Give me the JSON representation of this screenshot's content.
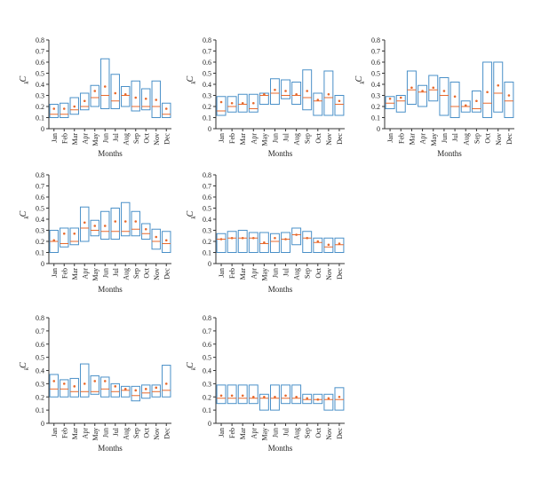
{
  "colors": {
    "box": "#4a90c8",
    "median": "#e8692c",
    "mean": "#e8692c",
    "axis": "#333333"
  },
  "chart_data": [
    {
      "type": "boxplot",
      "ylabel": "C",
      "ylabel_sub": "k",
      "xlabel": "Months",
      "ylim": [
        0,
        0.8
      ],
      "yticks": [
        "0",
        "0.1",
        "0.2",
        "0.3",
        "0.4",
        "0.5",
        "0.6",
        "0.7",
        "0.8"
      ],
      "categories": [
        "Jan",
        "Feb",
        "Mar",
        "Apr",
        "May",
        "Jun",
        "Jul",
        "Aug",
        "Sep",
        "Oct",
        "Nov",
        "Dec"
      ],
      "boxes": [
        {
          "low": 0.1,
          "high": 0.22,
          "median": 0.13,
          "mean": 0.18
        },
        {
          "low": 0.1,
          "high": 0.23,
          "median": 0.13,
          "mean": 0.18
        },
        {
          "low": 0.13,
          "high": 0.28,
          "median": 0.17,
          "mean": 0.2
        },
        {
          "low": 0.17,
          "high": 0.32,
          "median": 0.2,
          "mean": 0.25
        },
        {
          "low": 0.2,
          "high": 0.39,
          "median": 0.28,
          "mean": 0.34
        },
        {
          "low": 0.18,
          "high": 0.63,
          "median": 0.3,
          "mean": 0.38
        },
        {
          "low": 0.18,
          "high": 0.49,
          "median": 0.25,
          "mean": 0.32
        },
        {
          "low": 0.2,
          "high": 0.38,
          "median": 0.3,
          "mean": 0.31
        },
        {
          "low": 0.16,
          "high": 0.43,
          "median": 0.2,
          "mean": 0.28
        },
        {
          "low": 0.17,
          "high": 0.36,
          "median": 0.2,
          "mean": 0.27
        },
        {
          "low": 0.1,
          "high": 0.43,
          "median": 0.2,
          "mean": 0.26
        },
        {
          "low": 0.1,
          "high": 0.23,
          "median": 0.13,
          "mean": 0.18
        }
      ]
    },
    {
      "type": "boxplot",
      "ylabel": "C",
      "ylabel_sub": "k",
      "xlabel": "Months",
      "ylim": [
        0,
        0.8
      ],
      "yticks": [
        "0",
        "0.1",
        "0.2",
        "0.3",
        "0.4",
        "0.5",
        "0.6",
        "0.7",
        "0.8"
      ],
      "categories": [
        "Jan",
        "Feb",
        "Mar",
        "Apr",
        "May",
        "Jun",
        "Jul",
        "Aug",
        "Sep",
        "Oct",
        "Nov",
        "Dec"
      ],
      "boxes": [
        {
          "low": 0.12,
          "high": 0.29,
          "median": 0.16,
          "mean": 0.24
        },
        {
          "low": 0.15,
          "high": 0.29,
          "median": 0.2,
          "mean": 0.23
        },
        {
          "low": 0.15,
          "high": 0.31,
          "median": 0.22,
          "mean": 0.23
        },
        {
          "low": 0.15,
          "high": 0.31,
          "median": 0.18,
          "mean": 0.23
        },
        {
          "low": 0.22,
          "high": 0.32,
          "median": 0.3,
          "mean": 0.31
        },
        {
          "low": 0.22,
          "high": 0.45,
          "median": 0.32,
          "mean": 0.35
        },
        {
          "low": 0.27,
          "high": 0.44,
          "median": 0.3,
          "mean": 0.34
        },
        {
          "low": 0.22,
          "high": 0.42,
          "median": 0.3,
          "mean": 0.31
        },
        {
          "low": 0.17,
          "high": 0.53,
          "median": 0.28,
          "mean": 0.34
        },
        {
          "low": 0.12,
          "high": 0.32,
          "median": 0.25,
          "mean": 0.26
        },
        {
          "low": 0.12,
          "high": 0.52,
          "median": 0.28,
          "mean": 0.31
        },
        {
          "low": 0.12,
          "high": 0.3,
          "median": 0.22,
          "mean": 0.25
        }
      ]
    },
    {
      "type": "boxplot",
      "ylabel": "C",
      "ylabel_sub": "k",
      "xlabel": "Months",
      "ylim": [
        0,
        0.8
      ],
      "yticks": [
        "0",
        "0.1",
        "0.2",
        "0.3",
        "0.4",
        "0.5",
        "0.6",
        "0.7",
        "0.8"
      ],
      "categories": [
        "Jan",
        "Feb",
        "Mar",
        "Apr",
        "May",
        "Jun",
        "Jul",
        "Aug",
        "Sep",
        "Oct",
        "Nov",
        "Dec"
      ],
      "boxes": [
        {
          "low": 0.18,
          "high": 0.29,
          "median": 0.23,
          "mean": 0.27
        },
        {
          "low": 0.15,
          "high": 0.3,
          "median": 0.25,
          "mean": 0.28
        },
        {
          "low": 0.22,
          "high": 0.52,
          "median": 0.35,
          "mean": 0.37
        },
        {
          "low": 0.2,
          "high": 0.39,
          "median": 0.33,
          "mean": 0.34
        },
        {
          "low": 0.25,
          "high": 0.48,
          "median": 0.35,
          "mean": 0.37
        },
        {
          "low": 0.12,
          "high": 0.46,
          "median": 0.3,
          "mean": 0.34
        },
        {
          "low": 0.1,
          "high": 0.42,
          "median": 0.2,
          "mean": 0.29
        },
        {
          "low": 0.15,
          "high": 0.25,
          "median": 0.2,
          "mean": 0.21
        },
        {
          "low": 0.15,
          "high": 0.34,
          "median": 0.18,
          "mean": 0.25
        },
        {
          "low": 0.1,
          "high": 0.6,
          "median": 0.23,
          "mean": 0.33
        },
        {
          "low": 0.15,
          "high": 0.6,
          "median": 0.32,
          "mean": 0.39
        },
        {
          "low": 0.1,
          "high": 0.42,
          "median": 0.25,
          "mean": 0.3
        }
      ]
    },
    {
      "type": "boxplot",
      "ylabel": "C",
      "ylabel_sub": "k",
      "xlabel": "Months",
      "ylim": [
        0,
        0.8
      ],
      "yticks": [
        "0",
        "0.1",
        "0.2",
        "0.3",
        "0.4",
        "0.5",
        "0.6",
        "0.7",
        "0.8"
      ],
      "categories": [
        "Jan",
        "Feb",
        "Mar",
        "Apr",
        "May",
        "Jun",
        "Jul",
        "Aug",
        "Sep",
        "Oct",
        "Nov",
        "Dec"
      ],
      "boxes": [
        {
          "low": 0.1,
          "high": 0.3,
          "median": 0.2,
          "mean": 0.21
        },
        {
          "low": 0.15,
          "high": 0.32,
          "median": 0.18,
          "mean": 0.27
        },
        {
          "low": 0.17,
          "high": 0.32,
          "median": 0.2,
          "mean": 0.27
        },
        {
          "low": 0.2,
          "high": 0.51,
          "median": 0.32,
          "mean": 0.37
        },
        {
          "low": 0.25,
          "high": 0.39,
          "median": 0.3,
          "mean": 0.34
        },
        {
          "low": 0.22,
          "high": 0.47,
          "median": 0.29,
          "mean": 0.34
        },
        {
          "low": 0.22,
          "high": 0.5,
          "median": 0.29,
          "mean": 0.38
        },
        {
          "low": 0.25,
          "high": 0.55,
          "median": 0.29,
          "mean": 0.38
        },
        {
          "low": 0.25,
          "high": 0.47,
          "median": 0.31,
          "mean": 0.38
        },
        {
          "low": 0.22,
          "high": 0.36,
          "median": 0.27,
          "mean": 0.31
        },
        {
          "low": 0.13,
          "high": 0.31,
          "median": 0.2,
          "mean": 0.24
        },
        {
          "low": 0.1,
          "high": 0.29,
          "median": 0.18,
          "mean": 0.21
        }
      ]
    },
    {
      "type": "boxplot",
      "ylabel": "C",
      "ylabel_sub": "k",
      "xlabel": "Months",
      "ylim": [
        0,
        0.8
      ],
      "yticks": [
        "0",
        "0.1",
        "0.2",
        "0.3",
        "0.4",
        "0.5",
        "0.6",
        "0.7",
        "0.8"
      ],
      "categories": [
        "Jan",
        "Feb",
        "Mar",
        "Apr",
        "May",
        "Jun",
        "Jul",
        "Aug",
        "Sep",
        "Oct",
        "Nov",
        "Dec"
      ],
      "boxes": [
        {
          "low": 0.1,
          "high": 0.27,
          "median": 0.22,
          "mean": 0.22
        },
        {
          "low": 0.1,
          "high": 0.29,
          "median": 0.23,
          "mean": 0.23
        },
        {
          "low": 0.1,
          "high": 0.3,
          "median": 0.23,
          "mean": 0.23
        },
        {
          "low": 0.1,
          "high": 0.28,
          "median": 0.23,
          "mean": 0.23
        },
        {
          "low": 0.1,
          "high": 0.28,
          "median": 0.18,
          "mean": 0.19
        },
        {
          "low": 0.1,
          "high": 0.27,
          "median": 0.2,
          "mean": 0.23
        },
        {
          "low": 0.1,
          "high": 0.28,
          "median": 0.22,
          "mean": 0.22
        },
        {
          "low": 0.17,
          "high": 0.32,
          "median": 0.26,
          "mean": 0.26
        },
        {
          "low": 0.1,
          "high": 0.29,
          "median": 0.23,
          "mean": 0.23
        },
        {
          "low": 0.1,
          "high": 0.23,
          "median": 0.19,
          "mean": 0.2
        },
        {
          "low": 0.1,
          "high": 0.23,
          "median": 0.15,
          "mean": 0.17
        },
        {
          "low": 0.1,
          "high": 0.23,
          "median": 0.17,
          "mean": 0.18
        }
      ]
    },
    {
      "type": "boxplot",
      "ylabel": "C",
      "ylabel_sub": "k",
      "xlabel": "Months",
      "ylim": [
        0,
        0.8
      ],
      "yticks": [
        "0",
        "0.1",
        "0.2",
        "0.3",
        "0.4",
        "0.5",
        "0.6",
        "0.7",
        "0.8"
      ],
      "categories": [
        "Jan",
        "Feb",
        "Mar",
        "Apr",
        "May",
        "Jun",
        "Jul",
        "Aug",
        "Sep",
        "Oct",
        "Nov",
        "Dec"
      ],
      "boxes": [
        {
          "low": 0.2,
          "high": 0.37,
          "median": 0.26,
          "mean": 0.32
        },
        {
          "low": 0.2,
          "high": 0.33,
          "median": 0.26,
          "mean": 0.3
        },
        {
          "low": 0.2,
          "high": 0.34,
          "median": 0.24,
          "mean": 0.28
        },
        {
          "low": 0.2,
          "high": 0.45,
          "median": 0.24,
          "mean": 0.3
        },
        {
          "low": 0.22,
          "high": 0.36,
          "median": 0.24,
          "mean": 0.32
        },
        {
          "low": 0.2,
          "high": 0.35,
          "median": 0.26,
          "mean": 0.32
        },
        {
          "low": 0.2,
          "high": 0.3,
          "median": 0.24,
          "mean": 0.28
        },
        {
          "low": 0.2,
          "high": 0.28,
          "median": 0.25,
          "mean": 0.26
        },
        {
          "low": 0.17,
          "high": 0.28,
          "median": 0.21,
          "mean": 0.25
        },
        {
          "low": 0.19,
          "high": 0.29,
          "median": 0.23,
          "mean": 0.26
        },
        {
          "low": 0.2,
          "high": 0.29,
          "median": 0.24,
          "mean": 0.27
        },
        {
          "low": 0.2,
          "high": 0.44,
          "median": 0.25,
          "mean": 0.3
        }
      ]
    },
    {
      "type": "boxplot",
      "ylabel": "C",
      "ylabel_sub": "k",
      "xlabel": "Months",
      "ylim": [
        0,
        0.8
      ],
      "yticks": [
        "0",
        "0.1",
        "0.2",
        "0.3",
        "0.4",
        "0.5",
        "0.6",
        "0.7",
        "0.8"
      ],
      "categories": [
        "Jan",
        "Feb",
        "Mar",
        "Apr",
        "May",
        "Jun",
        "Jul",
        "Aug",
        "Sep",
        "Oct",
        "Nov",
        "Dec"
      ],
      "boxes": [
        {
          "low": 0.15,
          "high": 0.29,
          "median": 0.19,
          "mean": 0.21
        },
        {
          "low": 0.15,
          "high": 0.29,
          "median": 0.19,
          "mean": 0.21
        },
        {
          "low": 0.15,
          "high": 0.29,
          "median": 0.19,
          "mean": 0.21
        },
        {
          "low": 0.15,
          "high": 0.29,
          "median": 0.19,
          "mean": 0.2
        },
        {
          "low": 0.1,
          "high": 0.22,
          "median": 0.19,
          "mean": 0.2
        },
        {
          "low": 0.1,
          "high": 0.29,
          "median": 0.19,
          "mean": 0.2
        },
        {
          "low": 0.15,
          "high": 0.29,
          "median": 0.19,
          "mean": 0.21
        },
        {
          "low": 0.15,
          "high": 0.29,
          "median": 0.19,
          "mean": 0.2
        },
        {
          "low": 0.15,
          "high": 0.22,
          "median": 0.18,
          "mean": 0.19
        },
        {
          "low": 0.15,
          "high": 0.22,
          "median": 0.18,
          "mean": 0.18
        },
        {
          "low": 0.1,
          "high": 0.22,
          "median": 0.18,
          "mean": 0.19
        },
        {
          "low": 0.1,
          "high": 0.27,
          "median": 0.18,
          "mean": 0.2
        }
      ]
    }
  ]
}
